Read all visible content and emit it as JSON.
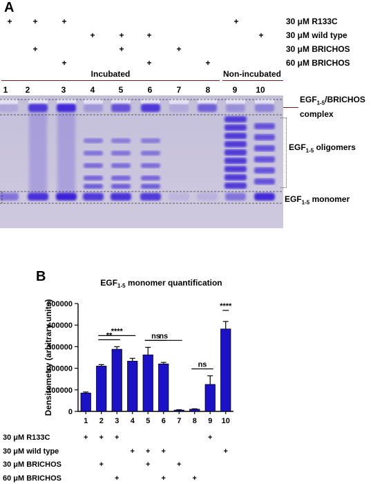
{
  "panel_a": {
    "letter": "A",
    "conditions": [
      {
        "label": "30 μM R133C",
        "lanes": [
          1,
          2,
          3,
          9
        ]
      },
      {
        "label": "30 μM wild type",
        "lanes": [
          4,
          5,
          6,
          10
        ]
      },
      {
        "label": "30 μM BRICHOS",
        "lanes": [
          2,
          5,
          7
        ]
      },
      {
        "label": "60 μM BRICHOS",
        "lanes": [
          3,
          6,
          8
        ]
      }
    ],
    "groups": {
      "incubated": "Incubated",
      "non_incubated": "Non-incubated"
    },
    "lanes": [
      "1",
      "2",
      "3",
      "4",
      "5",
      "6",
      "7",
      "8",
      "9",
      "10"
    ],
    "band_labels": {
      "complex_prefix": "EGF",
      "complex_sub": "1-5",
      "complex_suffix": "/BRICHOS",
      "complex_line2": "complex",
      "oligomers_prefix": "EGF",
      "oligomers_sub": "1-5",
      "oligomers_suffix": " oligomers",
      "monomer_prefix": "EGF",
      "monomer_sub": "1-5",
      "monomer_suffix": " monomer"
    },
    "plus_sign": "+",
    "colors": {
      "gel": "#c9c5dc",
      "band": "#3b24d8"
    }
  },
  "panel_b": {
    "letter": "B",
    "conditions": [
      {
        "label": "30 μM R133C",
        "lanes": [
          1,
          2,
          3,
          9
        ]
      },
      {
        "label": "30 μM wild type",
        "lanes": [
          4,
          5,
          6,
          10
        ]
      },
      {
        "label": "30 μM BRICHOS",
        "lanes": [
          2,
          5,
          7
        ]
      },
      {
        "label": "60 μM BRICHOS",
        "lanes": [
          3,
          6,
          8
        ]
      }
    ],
    "plus_sign": "+"
  },
  "chart_data": {
    "type": "bar",
    "title_prefix": "EGF",
    "title_sub": "1-5",
    "title_suffix": " monomer quantification",
    "ylabel": "Densitometry (arbitrary units)",
    "xlabel": "",
    "categories": [
      "1",
      "2",
      "3",
      "4",
      "5",
      "6",
      "7",
      "8",
      "9",
      "10"
    ],
    "values": [
      85000,
      210000,
      288000,
      233000,
      262000,
      220000,
      6000,
      10000,
      125000,
      382000
    ],
    "errors": [
      5000,
      7000,
      12000,
      13000,
      35000,
      7000,
      2000,
      2000,
      40000,
      35000
    ],
    "ylim": [
      0,
      500000
    ],
    "yticks": [
      "0",
      "100000",
      "200000",
      "300000",
      "400000",
      "500000"
    ],
    "significance": [
      {
        "from": 2,
        "to": 3,
        "label": "**"
      },
      {
        "from": 2,
        "to": 4,
        "label": "****"
      },
      {
        "from": 5,
        "to": 6,
        "label": "ns"
      },
      {
        "from": 5,
        "to": 7,
        "label": "ns"
      },
      {
        "from": 8,
        "to": 9,
        "label": "ns"
      },
      {
        "from": 10,
        "to": 11,
        "label": "****"
      }
    ],
    "bar_color": "#1a12c4",
    "legend": "none"
  }
}
